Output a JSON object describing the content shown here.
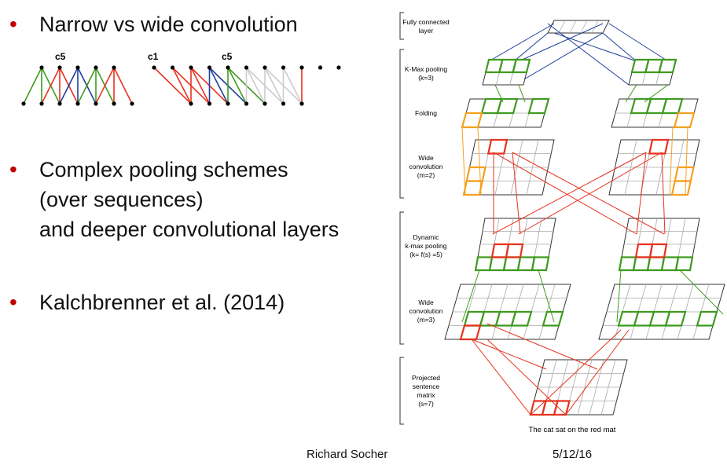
{
  "slide": {
    "bullets": [
      {
        "lines": [
          "Narrow vs wide convolution"
        ]
      },
      {
        "lines": [
          "Complex pooling schemes",
          "(over sequences)",
          "and deeper convolutional layers"
        ]
      },
      {
        "lines": [
          "Kalchbrenner et al. (2014)"
        ]
      }
    ],
    "footer": {
      "author": "Richard Socher",
      "date": "5/12/16"
    }
  },
  "figure_small": {
    "narrow_label": "c5",
    "wide_label_left": "c1",
    "wide_label_mid": "c5"
  },
  "figure_dcnn": {
    "layer_labels": [
      {
        "lines": [
          "Fully connected",
          "layer"
        ]
      },
      {
        "lines": [
          "K-Max pooling",
          "(k=3)"
        ]
      },
      {
        "lines": [
          "Folding"
        ]
      },
      {
        "lines": [
          "Wide",
          "convolution",
          "(m=2)"
        ]
      },
      {
        "lines": [
          "Dynamic",
          "k-max pooling",
          "(k= f(s) =5)"
        ]
      },
      {
        "lines": [
          "Wide",
          "convolution",
          "(m=3)"
        ]
      },
      {
        "lines": [
          "Projected",
          "sentence",
          "matrix",
          "(s=7)"
        ]
      }
    ],
    "caption": "The cat sat on the red mat",
    "colors": {
      "green": "#3f9b1f",
      "red": "#e8321f",
      "orange": "#f5a020",
      "blue": "#1f3f9b",
      "gray": "#555555"
    }
  }
}
